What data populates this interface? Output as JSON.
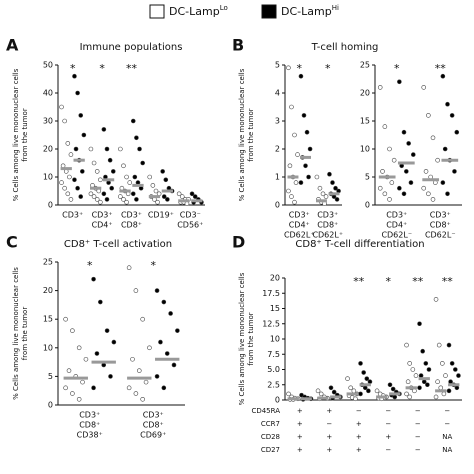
{
  "legend": [
    {
      "text": "DC-Lamp",
      "sup": "Lo",
      "fill": "#ffffff"
    },
    {
      "text": "DC-Lamp",
      "sup": "Hi",
      "fill": "#000000"
    }
  ],
  "chart_data": [
    {
      "type": "strip",
      "letter": "A",
      "title": "Immune populations",
      "ylabel": [
        "% Cells among live mononuclear cells",
        "from the tumor"
      ],
      "ylim": [
        0,
        50
      ],
      "yticks": [
        0,
        10,
        20,
        30,
        40,
        50
      ],
      "categories": [
        [
          "CD3⁺"
        ],
        [
          "CD3⁺",
          "CD4⁺"
        ],
        [
          "CD3⁺",
          "CD8⁺"
        ],
        [
          "CD19⁺"
        ],
        [
          "CD3⁻",
          "CD56⁺"
        ]
      ],
      "annotations": [
        "*",
        "*",
        "**",
        null,
        null
      ],
      "series": [
        {
          "fill": "#ffffff",
          "values": [
            [
              35,
              30,
              22,
              18,
              14,
              12,
              10,
              8,
              6,
              4,
              2
            ],
            [
              20,
              15,
              12,
              9,
              7,
              6,
              5,
              4,
              3,
              2,
              1
            ],
            [
              20,
              14,
              10,
              8,
              6,
              5,
              4,
              3,
              2,
              1
            ],
            [
              10,
              7,
              5,
              4,
              3,
              2,
              1
            ],
            [
              4,
              3,
              2,
              2,
              1,
              1,
              0.5
            ]
          ],
          "medians": [
            13,
            6,
            5,
            3,
            1.5
          ]
        },
        {
          "fill": "#000000",
          "values": [
            [
              46,
              40,
              32,
              25,
              20,
              16,
              12,
              9,
              6,
              3
            ],
            [
              27,
              20,
              16,
              12,
              10,
              8,
              6,
              4,
              2
            ],
            [
              30,
              24,
              20,
              15,
              10,
              8,
              6,
              4,
              2
            ],
            [
              12,
              9,
              6,
              5,
              3,
              2
            ],
            [
              4,
              3,
              2,
              1,
              1
            ]
          ],
          "medians": [
            16,
            9,
            7,
            5,
            1.5
          ]
        }
      ]
    },
    {
      "type": "strip",
      "letter": "B",
      "title": "T-cell homing",
      "ylabel": [
        "% Cells among live mononuclear cells",
        "from the tumor"
      ],
      "ylim": [
        0,
        5
      ],
      "yticks": [
        0,
        1,
        2,
        3,
        4,
        5
      ],
      "categories": [
        [
          "CD3⁺",
          "CD4⁺",
          "CD62L⁺"
        ],
        [
          "CD3⁺",
          "CD8⁺",
          "CD62L⁺"
        ]
      ],
      "annotations": [
        "*",
        "*"
      ],
      "series": [
        {
          "fill": "#ffffff",
          "values": [
            [
              4.9,
              3.5,
              2.5,
              1.8,
              1.4,
              1,
              0.8,
              0.5,
              0.3,
              0.1
            ],
            [
              1,
              0.6,
              0.4,
              0.3,
              0.2,
              0.1,
              0.05
            ]
          ],
          "medians": [
            1,
            0.15
          ]
        },
        {
          "fill": "#000000",
          "values": [
            [
              4.6,
              3.2,
              2.6,
              2,
              1.7,
              1.4,
              1,
              0.8
            ],
            [
              1.1,
              0.8,
              0.6,
              0.5,
              0.4,
              0.3,
              0.2
            ]
          ],
          "medians": [
            1.7,
            0.4
          ]
        }
      ]
    },
    {
      "type": "strip",
      "ylim": [
        0,
        25
      ],
      "yticks": [
        0,
        5,
        10,
        15,
        20,
        25
      ],
      "categories": [
        [
          "CD3⁺",
          "CD4⁺",
          "CD62L⁻"
        ],
        [
          "CD3⁺",
          "CD8⁺",
          "CD62L⁻"
        ]
      ],
      "annotations": [
        "*",
        "**"
      ],
      "series": [
        {
          "fill": "#ffffff",
          "values": [
            [
              21,
              14,
              10,
              8,
              6,
              5,
              4,
              3,
              2,
              1
            ],
            [
              21,
              16,
              12,
              8,
              6,
              5,
              4,
              3,
              2,
              1
            ]
          ],
          "medians": [
            5,
            4.5
          ]
        },
        {
          "fill": "#000000",
          "values": [
            [
              22,
              13,
              11,
              9,
              7,
              6,
              4,
              3,
              2
            ],
            [
              23,
              18,
              16,
              13,
              10,
              8,
              6,
              4,
              2
            ]
          ],
          "medians": [
            7.5,
            8
          ]
        }
      ]
    },
    {
      "type": "strip",
      "letter": "C",
      "title": "CD8⁺ T-cell activation",
      "ylabel": [
        "% Cells among live mononuclear cells",
        "from the tumor"
      ],
      "ylim": [
        0,
        25
      ],
      "yticks": [
        0,
        5,
        10,
        15,
        20,
        25
      ],
      "categories": [
        [
          "CD3⁺",
          "CD8⁺",
          "CD38⁺"
        ],
        [
          "CD3⁺",
          "CD8⁺",
          "CD69⁺"
        ]
      ],
      "annotations": [
        "*",
        "*"
      ],
      "series": [
        {
          "fill": "#ffffff",
          "values": [
            [
              15,
              13,
              10,
              8,
              6,
              5,
              4,
              3,
              2,
              1
            ],
            [
              24,
              20,
              15,
              10,
              8,
              6,
              4,
              3,
              2,
              1
            ]
          ],
          "medians": [
            4.7,
            4.7
          ]
        },
        {
          "fill": "#000000",
          "values": [
            [
              22,
              18,
              13,
              11,
              9,
              7,
              5,
              3
            ],
            [
              20,
              18,
              16,
              13,
              11,
              9,
              7,
              5,
              3
            ]
          ],
          "medians": [
            7.5,
            8
          ]
        }
      ]
    },
    {
      "type": "strip",
      "letter": "D",
      "title": "CD8⁺ T-cell differentiation",
      "ylabel": [
        "% Cells among live mononuclear cells",
        "from the tumor"
      ],
      "ylim": [
        0,
        20
      ],
      "yticks": [
        0,
        2.5,
        {
          "value": 5,
          "label": "5.0"
        },
        7.5,
        10,
        12.5,
        15,
        17.5,
        20
      ],
      "annotations": [
        null,
        null,
        "**",
        "*",
        "**",
        "**"
      ],
      "table": [
        {
          "label": "CD45RA",
          "cells": [
            "+",
            "+",
            "−",
            "−",
            "−",
            "−"
          ]
        },
        {
          "label": "CCR7",
          "cells": [
            "+",
            "−",
            "+",
            "−",
            "−",
            "−"
          ]
        },
        {
          "label": "CD28",
          "cells": [
            "+",
            "+",
            "+",
            "+",
            "−",
            "NA"
          ]
        },
        {
          "label": "CD27",
          "cells": [
            "+",
            "+",
            "+",
            "−",
            "−",
            "NA"
          ]
        }
      ],
      "series": [
        {
          "fill": "#ffffff",
          "values": [
            [
              1,
              0.5,
              0.3,
              0.2,
              0.1,
              0.1
            ],
            [
              1.5,
              1,
              0.5,
              0.3,
              0.2
            ],
            [
              3.5,
              2,
              1.5,
              1,
              0.7,
              0.4,
              0.2
            ],
            [
              1.5,
              1,
              0.7,
              0.5,
              0.3,
              0.2
            ],
            [
              9,
              6,
              5,
              4,
              3,
              2,
              1.5,
              1,
              0.5
            ],
            [
              16.5,
              9,
              6,
              4,
              3,
              2,
              1,
              0.5
            ]
          ],
          "medians": [
            0.2,
            0.3,
            1,
            0.5,
            2,
            1.5
          ]
        },
        {
          "fill": "#000000",
          "values": [
            [
              0.8,
              0.5,
              0.3,
              0.2,
              0.1
            ],
            [
              2,
              1.3,
              0.8,
              0.5,
              0.3
            ],
            [
              6,
              4.5,
              3.5,
              3,
              2.5,
              2,
              1.5,
              1
            ],
            [
              2.5,
              1.8,
              1.3,
              1,
              0.8,
              0.5
            ],
            [
              12.5,
              8,
              6,
              5,
              4,
              3,
              2.5,
              2
            ],
            [
              9,
              6,
              5,
              4,
              3,
              2.5,
              2,
              1.5
            ]
          ],
          "medians": [
            0.2,
            0.5,
            2.5,
            1,
            3.5,
            2.5
          ]
        }
      ]
    }
  ]
}
